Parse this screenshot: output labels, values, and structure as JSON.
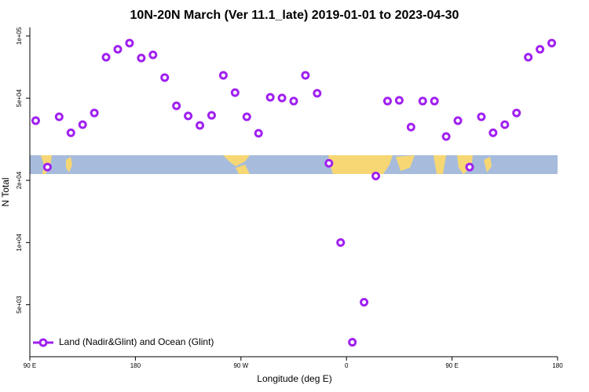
{
  "chart_data": {
    "type": "scatter",
    "title": "10N-20N March (Ver 11.1_late)   2019-01-01 to 2023-04-30",
    "x_label": "Longitude (deg E)",
    "y_label": "N Total",
    "log_y": true,
    "legend_position": "bottom-left",
    "xlim": [
      90,
      540
    ],
    "xticks": [
      {
        "value": 90,
        "label": "90 E"
      },
      180,
      {
        "value": 270,
        "label": "90 W"
      },
      {
        "value": 360,
        "label": "0"
      },
      {
        "value": 450,
        "label": "90 E"
      },
      {
        "value": 540,
        "label": "180"
      }
    ],
    "ylim": [
      2800,
      110000
    ],
    "yticks": [
      {
        "value": 5000,
        "label": "5e+03"
      },
      {
        "value": 10000,
        "label": "1e+04"
      },
      {
        "value": 20000,
        "label": "2e+04"
      },
      {
        "value": 50000,
        "label": "5e+04"
      },
      {
        "value": 100000,
        "label": "1e+05"
      }
    ],
    "series": [
      {
        "name": "Land (Nadir&Glint) and Ocean (Glint)",
        "color": "#a020f0",
        "x": [
          95,
          105,
          115,
          125,
          135,
          145,
          155,
          165,
          175,
          185,
          195,
          205,
          215,
          225,
          235,
          245,
          255,
          265,
          275,
          285,
          295,
          305,
          315,
          325,
          335,
          345,
          355,
          365,
          375,
          385,
          395,
          405,
          415,
          425,
          435,
          445,
          455,
          465,
          475,
          485,
          495,
          505,
          515,
          525,
          535
        ],
        "values": [
          38900,
          23200,
          40600,
          34000,
          37200,
          42400,
          78900,
          86200,
          92400,
          78200,
          81000,
          62900,
          45900,
          41000,
          36900,
          41300,
          64500,
          53200,
          40600,
          33800,
          50500,
          50100,
          48400,
          64500,
          52800,
          24200,
          10000,
          3290,
          5140,
          21000,
          48400,
          48800,
          36200,
          48400,
          48400,
          32600,
          38900,
          23200,
          40600,
          34000,
          37200,
          42400,
          78900,
          86200,
          92400
        ]
      }
    ]
  }
}
